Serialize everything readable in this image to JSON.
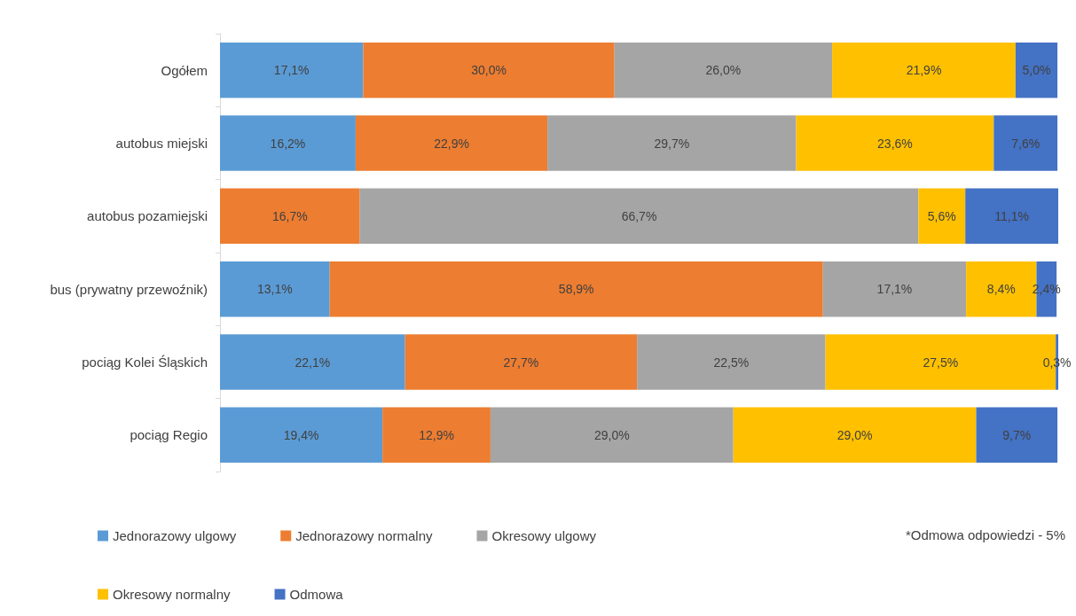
{
  "chart_data": {
    "type": "bar",
    "orientation": "horizontal",
    "stacked": true,
    "legend": "bottom",
    "categories": [
      "Ogółem",
      "autobus miejski",
      "autobus pozamiejski",
      "bus (prywatny przewoźnik)",
      "pociąg Kolei Śląskich",
      "pociąg Regio"
    ],
    "series": [
      {
        "name": "Jednorazowy ulgowy",
        "color": "#5b9bd5",
        "values": [
          17.1,
          16.2,
          null,
          13.1,
          22.1,
          19.4
        ],
        "value_labels": [
          "17,1%",
          "16,2%",
          null,
          "13,1%",
          "22,1%",
          "19,4%"
        ]
      },
      {
        "name": "Jednorazowy normalny",
        "color": "#ed7d31",
        "values": [
          30.0,
          22.9,
          16.7,
          58.9,
          27.7,
          12.9
        ],
        "value_labels": [
          "30,0%",
          "22,9%",
          "16,7%",
          "58,9%",
          "27,7%",
          "12,9%"
        ]
      },
      {
        "name": "Okresowy ulgowy",
        "color": "#a5a5a5",
        "values": [
          26.0,
          29.7,
          66.7,
          17.1,
          22.5,
          29.0
        ],
        "value_labels": [
          "26,0%",
          "29,7%",
          "66,7%",
          "17,1%",
          "22,5%",
          "29,0%"
        ]
      },
      {
        "name": "Okresowy normalny",
        "color": "#ffc000",
        "values": [
          21.9,
          23.6,
          5.6,
          8.4,
          27.5,
          29.0
        ],
        "value_labels": [
          "21,9%",
          "23,6%",
          "5,6%",
          "8,4%",
          "27,5%",
          "29,0%"
        ]
      },
      {
        "name": "Odmowa",
        "color": "#4472c4",
        "values": [
          5.0,
          7.6,
          11.1,
          2.4,
          0.3,
          9.7
        ],
        "value_labels": [
          "5,0%",
          "7,6%",
          "11,1%",
          "2,4%",
          "0,3%",
          "9,7%"
        ]
      }
    ],
    "annotations": [
      "*Odmowa odpowiedzi - 5%"
    ]
  }
}
